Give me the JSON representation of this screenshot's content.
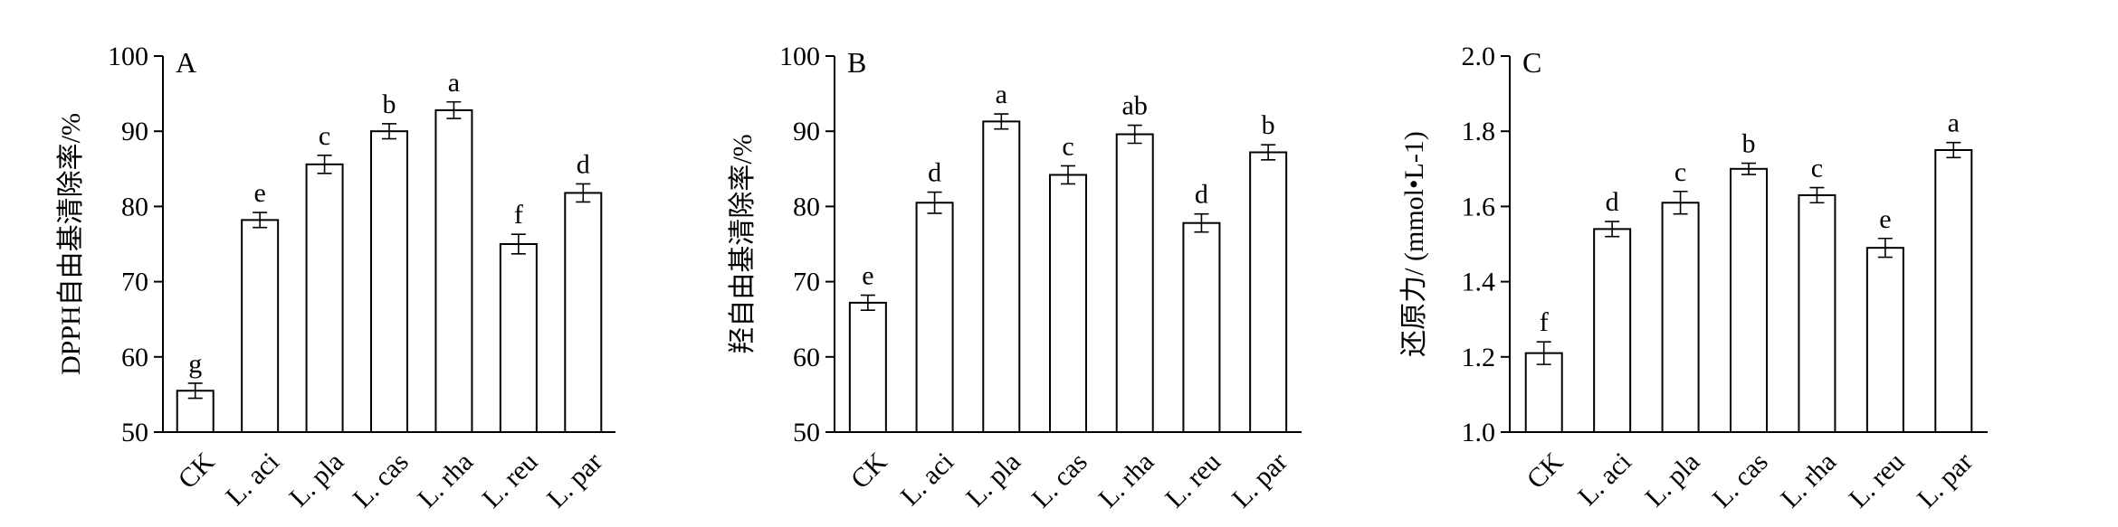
{
  "chart_data": [
    {
      "type": "bar",
      "panel_label": "A",
      "ylabel": "DPPH自由基清除率/%",
      "ylim": [
        50,
        100
      ],
      "yticks": [
        50,
        60,
        70,
        80,
        90,
        100
      ],
      "categories": [
        "CK",
        "L. aci",
        "L. pla",
        "L. cas",
        "L. rha",
        "L. reu",
        "L. par"
      ],
      "values": [
        55.5,
        78.2,
        85.6,
        90.0,
        92.8,
        75.0,
        81.8
      ],
      "errors": [
        1.0,
        1.0,
        1.2,
        1.0,
        1.1,
        1.3,
        1.2
      ],
      "significance": [
        "g",
        "e",
        "c",
        "b",
        "a",
        "f",
        "d"
      ],
      "grid": false,
      "bar_fill": "#ffffff",
      "bar_edge": "#000000"
    },
    {
      "type": "bar",
      "panel_label": "B",
      "ylabel": "羟自由基清除率/%",
      "ylim": [
        50,
        100
      ],
      "yticks": [
        50,
        60,
        70,
        80,
        90,
        100
      ],
      "categories": [
        "CK",
        "L. aci",
        "L. pla",
        "L. cas",
        "L. rha",
        "L. reu",
        "L. par"
      ],
      "values": [
        67.2,
        80.5,
        91.3,
        84.2,
        89.6,
        77.8,
        87.2
      ],
      "errors": [
        1.0,
        1.4,
        1.0,
        1.2,
        1.2,
        1.2,
        1.0
      ],
      "significance": [
        "e",
        "d",
        "a",
        "c",
        "ab",
        "d",
        "b"
      ],
      "grid": false,
      "bar_fill": "#ffffff",
      "bar_edge": "#000000"
    },
    {
      "type": "bar",
      "panel_label": "C",
      "ylabel": "还原力/ (mmol•L-1)",
      "ylim": [
        1.0,
        2.0
      ],
      "yticks": [
        "1.0",
        "1.2",
        "1.4",
        "1.6",
        "1.8",
        "2.0"
      ],
      "categories": [
        "CK",
        "L. aci",
        "L. pla",
        "L. cas",
        "L. rha",
        "L. reu",
        "L. par"
      ],
      "values": [
        1.21,
        1.54,
        1.61,
        1.7,
        1.63,
        1.49,
        1.75
      ],
      "errors": [
        0.03,
        0.02,
        0.03,
        0.015,
        0.02,
        0.025,
        0.02
      ],
      "significance": [
        "f",
        "d",
        "c",
        "b",
        "c",
        "e",
        "a"
      ],
      "grid": false,
      "bar_fill": "#ffffff",
      "bar_edge": "#000000"
    }
  ]
}
